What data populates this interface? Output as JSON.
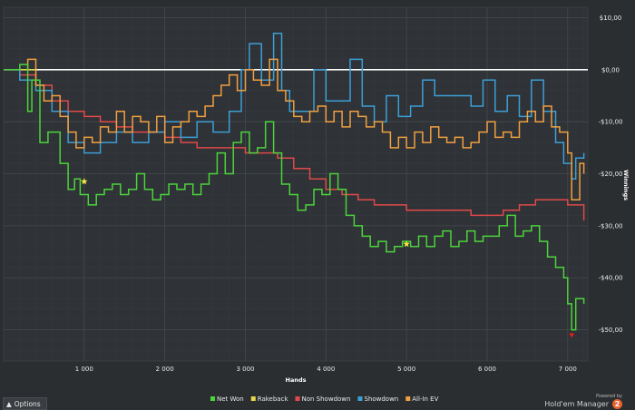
{
  "chart_data": {
    "type": "line",
    "xlabel": "Hands",
    "ylabel": "Winnings",
    "xlim": [
      0,
      7250
    ],
    "ylim": [
      -56,
      12
    ],
    "x_ticks": [
      {
        "value": 1000,
        "label": "1 000"
      },
      {
        "value": 2000,
        "label": "2 000"
      },
      {
        "value": 3000,
        "label": "3 000"
      },
      {
        "value": 4000,
        "label": "4 000"
      },
      {
        "value": 5000,
        "label": "5 000"
      },
      {
        "value": 6000,
        "label": "6 000"
      },
      {
        "value": 7000,
        "label": "7 000"
      }
    ],
    "y_ticks": [
      {
        "value": 10,
        "label": "$10,00"
      },
      {
        "value": 0,
        "label": "$0,00"
      },
      {
        "value": -10,
        "label": "-$10,00"
      },
      {
        "value": -20,
        "label": "-$20,00"
      },
      {
        "value": -30,
        "label": "-$30,00"
      },
      {
        "value": -40,
        "label": "-$40,00"
      },
      {
        "value": -50,
        "label": "-$50,00"
      }
    ],
    "grid": true,
    "legend_position": "bottom",
    "series": [
      {
        "name": "Net Won",
        "color": "#4cd43c",
        "x": [
          0,
          200,
          300,
          350,
          450,
          550,
          700,
          800,
          880,
          950,
          1050,
          1150,
          1250,
          1350,
          1450,
          1550,
          1650,
          1750,
          1850,
          1950,
          2050,
          2150,
          2250,
          2350,
          2450,
          2550,
          2650,
          2750,
          2850,
          2950,
          3050,
          3150,
          3250,
          3350,
          3450,
          3550,
          3650,
          3750,
          3850,
          3950,
          4050,
          4150,
          4250,
          4350,
          4450,
          4550,
          4650,
          4750,
          4850,
          4950,
          5050,
          5150,
          5250,
          5350,
          5450,
          5550,
          5650,
          5750,
          5850,
          5950,
          6050,
          6150,
          6250,
          6350,
          6450,
          6550,
          6650,
          6750,
          6850,
          6950,
          7000,
          7050,
          7100,
          7150,
          7200
        ],
        "y": [
          0,
          1,
          -8,
          -2,
          -14,
          -12,
          -18,
          -23,
          -21,
          -24,
          -26,
          -24,
          -23,
          -22,
          -24,
          -23,
          -20,
          -23,
          -25,
          -24,
          -22,
          -23,
          -22,
          -24,
          -22,
          -20,
          -16,
          -20,
          -14,
          -12,
          -16,
          -15,
          -10,
          -16,
          -22,
          -24,
          -27,
          -26,
          -23,
          -24,
          -20,
          -23,
          -28,
          -30,
          -32,
          -34,
          -33,
          -35,
          -34,
          -33,
          -34,
          -32,
          -34,
          -32,
          -31,
          -34,
          -33,
          -31,
          -33,
          -32,
          -32,
          -30,
          -28,
          -32,
          -31,
          -30,
          -33,
          -36,
          -38,
          -40,
          -45,
          -50,
          -44,
          -44,
          -45
        ]
      },
      {
        "name": "Rakeback",
        "color": "#e6d84a",
        "x": [
          0,
          200,
          400
        ],
        "y": [
          0,
          0,
          0
        ]
      },
      {
        "name": "Non Showdown",
        "color": "#e04a4a",
        "x": [
          0,
          200,
          400,
          600,
          800,
          1000,
          1200,
          1400,
          1600,
          1800,
          2000,
          2200,
          2400,
          2600,
          2800,
          3000,
          3200,
          3400,
          3600,
          3800,
          4000,
          4200,
          4400,
          4600,
          4800,
          5000,
          5200,
          5400,
          5600,
          5800,
          6000,
          6200,
          6400,
          6600,
          6800,
          7000,
          7200
        ],
        "y": [
          0,
          -1,
          -3,
          -6,
          -8,
          -9,
          -10,
          -11,
          -12,
          -12,
          -13,
          -14,
          -15,
          -15,
          -15,
          -16,
          -16,
          -17,
          -19,
          -21,
          -23,
          -24,
          -25,
          -26,
          -26,
          -27,
          -27,
          -27,
          -27,
          -28,
          -28,
          -27,
          -26,
          -25,
          -25,
          -26,
          -29
        ]
      },
      {
        "name": "Showdown",
        "color": "#3c9fd6",
        "x": [
          0,
          200,
          400,
          600,
          800,
          1000,
          1200,
          1400,
          1600,
          1800,
          2000,
          2200,
          2400,
          2600,
          2800,
          2950,
          3050,
          3200,
          3350,
          3450,
          3550,
          3700,
          3850,
          4000,
          4150,
          4300,
          4450,
          4600,
          4750,
          4900,
          5050,
          5200,
          5350,
          5500,
          5650,
          5800,
          5950,
          6100,
          6250,
          6400,
          6550,
          6700,
          6850,
          6950,
          7050,
          7100,
          7200
        ],
        "y": [
          0,
          -2,
          -4,
          -8,
          -14,
          -16,
          -14,
          -12,
          -14,
          -12,
          -10,
          -13,
          -10,
          -12,
          -8,
          0,
          5,
          -2,
          7,
          -4,
          -8,
          -8,
          0,
          -6,
          -6,
          2,
          -7,
          -10,
          -5,
          -9,
          -7,
          -2,
          -5,
          -5,
          -5,
          -7,
          -2,
          -8,
          -5,
          -9,
          -2,
          -8,
          -14,
          -18,
          -21,
          -17,
          -16
        ]
      },
      {
        "name": "All-In EV",
        "color": "#f0a040",
        "x": [
          0,
          200,
          300,
          400,
          500,
          600,
          700,
          800,
          900,
          1000,
          1100,
          1200,
          1300,
          1400,
          1500,
          1600,
          1700,
          1800,
          1900,
          2000,
          2100,
          2200,
          2300,
          2400,
          2500,
          2600,
          2700,
          2800,
          2900,
          3000,
          3100,
          3200,
          3300,
          3400,
          3500,
          3600,
          3700,
          3800,
          3900,
          4000,
          4100,
          4200,
          4300,
          4400,
          4500,
          4600,
          4700,
          4800,
          4900,
          5000,
          5100,
          5200,
          5300,
          5400,
          5500,
          5600,
          5700,
          5800,
          5900,
          6000,
          6100,
          6200,
          6300,
          6400,
          6500,
          6600,
          6700,
          6800,
          6900,
          7000,
          7050,
          7150,
          7200
        ],
        "y": [
          0,
          0,
          2,
          -3,
          -6,
          -5,
          -9,
          -12,
          -15,
          -13,
          -14,
          -11,
          -12,
          -8,
          -12,
          -9,
          -10,
          -12,
          -9,
          -14,
          -11,
          -10,
          -8,
          -9,
          -7,
          -5,
          -3,
          -1,
          -4,
          0,
          -2,
          -3,
          2,
          -4,
          -6,
          -9,
          -10,
          -8,
          -7,
          -10,
          -8,
          -11,
          -8,
          -9,
          -11,
          -10,
          -12,
          -15,
          -13,
          -15,
          -12,
          -14,
          -11,
          -13,
          -14,
          -13,
          -15,
          -14,
          -12,
          -10,
          -13,
          -12,
          -13,
          -10,
          -8,
          -10,
          -7,
          -11,
          -12,
          -16,
          -25,
          -18,
          -20
        ]
      }
    ],
    "markers": [
      {
        "name": "star-marker",
        "x": 1000,
        "y": -21.5,
        "color": "#f5e642"
      },
      {
        "name": "star-marker",
        "x": 5000,
        "y": -33.5,
        "color": "#f5e642"
      },
      {
        "name": "min-marker",
        "x": 7050,
        "y": -51,
        "color": "#e02020"
      }
    ]
  },
  "options_label": "Options",
  "brand": {
    "powered_by": "Powered by",
    "name": "Hold'em Manager",
    "badge": "2"
  }
}
